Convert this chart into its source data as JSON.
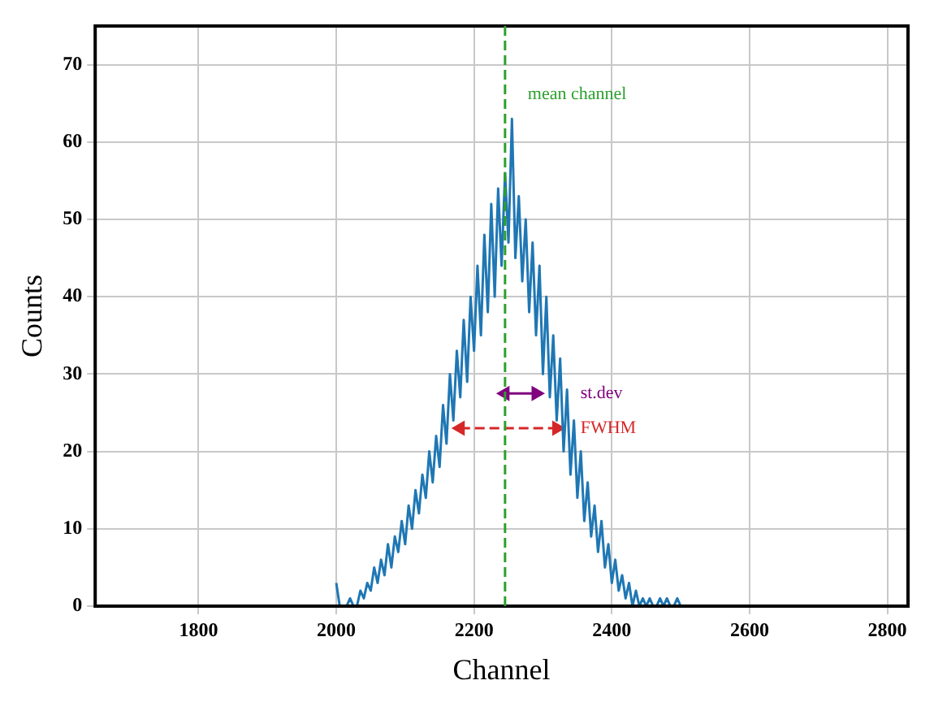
{
  "chart_data": {
    "type": "line",
    "xlabel": "Channel",
    "ylabel": "Counts",
    "xlim": [
      1650,
      2830
    ],
    "xticks": [
      1800,
      2000,
      2200,
      2400,
      2600,
      2800
    ],
    "ylim": [
      0,
      75
    ],
    "yticks": [
      0,
      10,
      20,
      30,
      40,
      50,
      60,
      70
    ],
    "grid": true,
    "legend": false,
    "marker": "none",
    "series": [
      {
        "color": "#1f77b4",
        "line_style": "solid",
        "x": [
          2000,
          2005,
          2010,
          2015,
          2020,
          2025,
          2030,
          2035,
          2040,
          2045,
          2050,
          2055,
          2060,
          2065,
          2070,
          2075,
          2080,
          2085,
          2090,
          2095,
          2100,
          2105,
          2110,
          2115,
          2120,
          2125,
          2130,
          2135,
          2140,
          2145,
          2150,
          2155,
          2160,
          2165,
          2170,
          2175,
          2180,
          2185,
          2190,
          2195,
          2200,
          2205,
          2210,
          2215,
          2220,
          2225,
          2230,
          2235,
          2240,
          2245,
          2250,
          2255,
          2260,
          2265,
          2270,
          2275,
          2280,
          2285,
          2290,
          2295,
          2300,
          2305,
          2310,
          2315,
          2320,
          2325,
          2330,
          2335,
          2340,
          2345,
          2350,
          2355,
          2360,
          2365,
          2370,
          2375,
          2380,
          2385,
          2390,
          2395,
          2400,
          2405,
          2410,
          2415,
          2420,
          2425,
          2430,
          2435,
          2440,
          2445,
          2450,
          2455,
          2460,
          2465,
          2470,
          2475,
          2480,
          2485,
          2490,
          2495,
          2500
        ],
        "values": [
          3,
          0,
          0,
          0,
          1,
          0,
          0,
          2,
          1,
          3,
          2,
          5,
          3,
          6,
          4,
          8,
          5,
          9,
          7,
          11,
          8,
          13,
          10,
          15,
          12,
          17,
          14,
          20,
          16,
          22,
          18,
          26,
          21,
          30,
          24,
          33,
          27,
          37,
          29,
          40,
          33,
          44,
          35,
          48,
          38,
          52,
          40,
          54,
          44,
          56,
          47,
          63,
          45,
          53,
          42,
          50,
          38,
          47,
          35,
          44,
          30,
          40,
          27,
          35,
          24,
          32,
          20,
          28,
          17,
          24,
          14,
          20,
          11,
          16,
          9,
          13,
          7,
          11,
          5,
          8,
          3,
          6,
          2,
          4,
          1,
          3,
          0,
          2,
          0,
          1,
          0,
          1,
          0,
          0,
          1,
          0,
          1,
          0,
          0,
          1,
          0
        ]
      },
      {
        "color": "#d62728",
        "line_style": "dashed",
        "marker": "triangle",
        "x": [
          2180,
          2320
        ],
        "values": [
          23,
          23
        ]
      },
      {
        "color": "#800080",
        "line_style": "solid",
        "marker": "triangle",
        "x": [
          2245,
          2290
        ],
        "values": [
          27.5,
          27.5
        ]
      }
    ],
    "ref_lines": [
      {
        "axis": "x",
        "value": 2245,
        "label": "mean channel",
        "color": "#2ca02c",
        "line_style": "dashed"
      }
    ],
    "annotations": [
      {
        "text": "FWHM",
        "x": 2345,
        "y": 23
      },
      {
        "text": "st.dev",
        "x": 2345,
        "y": 27.5
      }
    ]
  }
}
